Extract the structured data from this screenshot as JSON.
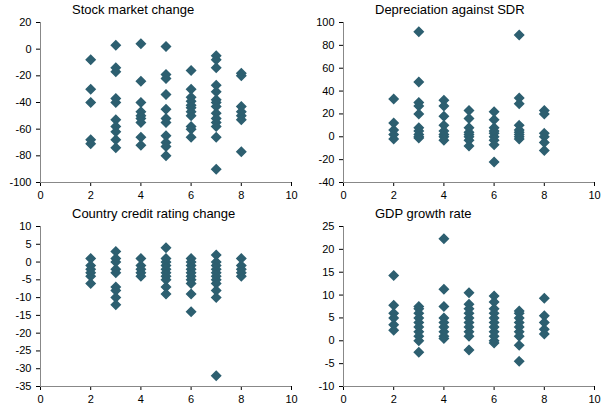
{
  "chart_data": [
    {
      "type": "scatter",
      "title": "Stock market change",
      "color": "#2d5f70",
      "marker": "diamond",
      "x": [
        2,
        2,
        2,
        2,
        2,
        3,
        3,
        3,
        3,
        3,
        3,
        3,
        3,
        3,
        3,
        4,
        4,
        4,
        4,
        4,
        4,
        4,
        4,
        4,
        5,
        5,
        5,
        5,
        5,
        5,
        5,
        5,
        5,
        5,
        5,
        6,
        6,
        6,
        6,
        6,
        6,
        6,
        6,
        6,
        6,
        6,
        7,
        7,
        7,
        7,
        7,
        7,
        7,
        7,
        7,
        7,
        7,
        7,
        7,
        7,
        8,
        8,
        8,
        8,
        8,
        8,
        8
      ],
      "y": [
        -8,
        -30,
        -40,
        -68,
        -71,
        3,
        -14,
        -17,
        -37,
        -40,
        -53,
        -58,
        -62,
        -68,
        -74,
        4,
        -24,
        -40,
        -47,
        -50,
        -52,
        -55,
        -66,
        -72,
        2,
        -19,
        -22,
        -34,
        -45,
        -52,
        -55,
        -65,
        -70,
        -73,
        -80,
        -16,
        -30,
        -36,
        -39,
        -42,
        -44,
        -47,
        -50,
        -58,
        -60,
        -66,
        -5,
        -8,
        -14,
        -27,
        -32,
        -38,
        -40,
        -43,
        -48,
        -52,
        -55,
        -58,
        -66,
        -90,
        -18,
        -20,
        -43,
        -47,
        -50,
        -53,
        -77
      ],
      "xlim": [
        0,
        10
      ],
      "xticks": [
        0,
        2,
        4,
        6,
        8,
        10
      ],
      "ylim": [
        -100,
        20
      ],
      "yticks": [
        -100,
        -80,
        -60,
        -40,
        -20,
        0,
        20
      ],
      "grid": false
    },
    {
      "type": "scatter",
      "title": "Depreciation against SDR",
      "color": "#2d5f70",
      "marker": "diamond",
      "x": [
        2,
        2,
        2,
        2,
        2,
        3,
        3,
        3,
        3,
        3,
        3,
        3,
        3,
        3,
        3,
        4,
        4,
        4,
        4,
        4,
        4,
        4,
        4,
        5,
        5,
        5,
        5,
        5,
        5,
        5,
        5,
        6,
        6,
        6,
        6,
        6,
        6,
        6,
        6,
        6,
        7,
        7,
        7,
        7,
        7,
        7,
        7,
        7,
        7,
        8,
        8,
        8,
        8,
        8,
        8
      ],
      "y": [
        33,
        12,
        6,
        2,
        -2,
        92,
        48,
        30,
        27,
        20,
        8,
        5,
        2,
        0,
        -1,
        32,
        27,
        18,
        10,
        5,
        2,
        0,
        -3,
        23,
        16,
        8,
        4,
        2,
        0,
        -3,
        -8,
        22,
        15,
        8,
        5,
        3,
        0,
        -3,
        -7,
        -22,
        89,
        34,
        29,
        10,
        6,
        4,
        2,
        0,
        -2,
        23,
        20,
        3,
        0,
        -5,
        -12
      ],
      "xlim": [
        0,
        10
      ],
      "xticks": [
        0,
        2,
        4,
        6,
        8,
        10
      ],
      "ylim": [
        -40,
        100
      ],
      "yticks": [
        -40,
        -20,
        0,
        20,
        40,
        60,
        80,
        100
      ],
      "grid": false
    },
    {
      "type": "scatter",
      "title": "Country credit rating change",
      "color": "#2d5f70",
      "marker": "diamond",
      "x": [
        2,
        2,
        2,
        2,
        2,
        2,
        3,
        3,
        3,
        3,
        3,
        3,
        3,
        3,
        3,
        4,
        4,
        4,
        4,
        4,
        5,
        5,
        5,
        5,
        5,
        5,
        5,
        5,
        5,
        5,
        6,
        6,
        6,
        6,
        6,
        6,
        6,
        6,
        6,
        6,
        7,
        7,
        7,
        7,
        7,
        7,
        7,
        7,
        7,
        7,
        7,
        8,
        8,
        8,
        8,
        8
      ],
      "y": [
        1,
        -1,
        -2,
        -3,
        -4,
        -6,
        3,
        1,
        0,
        -2,
        -3,
        -7,
        -8,
        -10,
        -12,
        1,
        -1,
        -2,
        -3,
        -4,
        4,
        1,
        0,
        -1,
        -2,
        -3,
        -4,
        -5,
        -7,
        -9,
        1,
        0,
        -1,
        -2,
        -3,
        -4,
        -5,
        -6,
        -9,
        -14,
        2,
        0,
        -1,
        -2,
        -3,
        -4,
        -5,
        -6,
        -8,
        -10,
        -32,
        1,
        -1,
        -2,
        -3,
        -4
      ],
      "xlim": [
        0,
        10
      ],
      "xticks": [
        0,
        2,
        4,
        6,
        8,
        10
      ],
      "ylim": [
        -35,
        10
      ],
      "yticks": [
        -35,
        -30,
        -25,
        -20,
        -15,
        -10,
        -5,
        0,
        5,
        10
      ],
      "grid": false
    },
    {
      "type": "scatter",
      "title": "GDP growth rate",
      "color": "#2d5f70",
      "marker": "diamond",
      "x": [
        2,
        2,
        2,
        2,
        2,
        2,
        3,
        3,
        3,
        3,
        3,
        3,
        3,
        3,
        3,
        3,
        4,
        4,
        4,
        4,
        4,
        4,
        4,
        4,
        4,
        5,
        5,
        5,
        5,
        5,
        5,
        5,
        5,
        5,
        5,
        6,
        6,
        6,
        6,
        6,
        6,
        6,
        6,
        6,
        6,
        6,
        7,
        7,
        7,
        7,
        7,
        7,
        7,
        7,
        7,
        8,
        8,
        8,
        8,
        8
      ],
      "y": [
        14.3,
        7.8,
        6,
        5,
        3.5,
        2.3,
        7.5,
        7,
        6,
        5,
        4,
        3,
        2,
        1,
        0,
        -2.5,
        22.3,
        11.3,
        7.5,
        5,
        4,
        3,
        2,
        1,
        0.5,
        10.5,
        8,
        7,
        6,
        5,
        4,
        3,
        2,
        1,
        -2,
        9.8,
        8.5,
        7,
        6,
        5,
        4,
        3,
        2,
        1,
        0,
        -0.5,
        6.5,
        6,
        5,
        4,
        3,
        2,
        1,
        -1,
        -4.5,
        9.3,
        5.5,
        4,
        2.5,
        1.5
      ],
      "xlim": [
        0,
        10
      ],
      "xticks": [
        0,
        2,
        4,
        6,
        8,
        10
      ],
      "ylim": [
        -10,
        25
      ],
      "yticks": [
        -10,
        -5,
        0,
        5,
        10,
        15,
        20,
        25
      ],
      "grid": false
    }
  ]
}
